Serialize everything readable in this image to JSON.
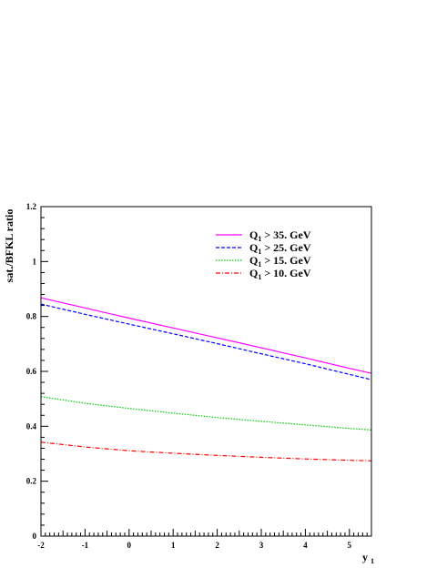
{
  "chart_data": {
    "type": "line",
    "title": "",
    "xlabel": "y",
    "xlabel_sub": "1",
    "ylabel": "sat./BFKL ratio",
    "xlim": [
      -2,
      5.5
    ],
    "ylim": [
      0,
      1.2
    ],
    "x_ticks": [
      -2,
      -1,
      0,
      1,
      2,
      3,
      4,
      5
    ],
    "x_tick_labels": [
      "-2",
      "-1",
      "0",
      "1",
      "2",
      "3",
      "4",
      "5"
    ],
    "y_ticks": [
      0,
      0.2,
      0.4,
      0.6,
      0.8,
      1,
      1.2
    ],
    "y_tick_labels": [
      "0",
      "0.2",
      "0.4",
      "0.6",
      "0.8",
      "1",
      "1.2"
    ],
    "grid": false,
    "legend_position": "top-right",
    "x": [
      -2,
      -1,
      0,
      1,
      2,
      3,
      4,
      5,
      5.5
    ],
    "series": [
      {
        "name_main": "Q",
        "name_sub": "1",
        "name_rest": " > 35. GeV",
        "color": "#ff00ff",
        "dash": "solid",
        "values": [
          0.868,
          0.831,
          0.794,
          0.758,
          0.722,
          0.686,
          0.649,
          0.611,
          0.593
        ]
      },
      {
        "name_main": "Q",
        "name_sub": "1",
        "name_rest": " > 25. GeV",
        "color": "#0000ff",
        "dash": "dashed",
        "values": [
          0.845,
          0.808,
          0.772,
          0.737,
          0.701,
          0.664,
          0.628,
          0.589,
          0.57
        ]
      },
      {
        "name_main": "Q",
        "name_sub": "1",
        "name_rest": " > 15. GeV",
        "color": "#00cc00",
        "dash": "dotted",
        "values": [
          0.508,
          0.484,
          0.465,
          0.448,
          0.432,
          0.418,
          0.405,
          0.392,
          0.387
        ]
      },
      {
        "name_main": "Q",
        "name_sub": "1",
        "name_rest": " > 10. GeV",
        "color": "#ff0000",
        "dash": "dashdot",
        "values": [
          0.342,
          0.325,
          0.311,
          0.302,
          0.294,
          0.287,
          0.281,
          0.276,
          0.274
        ]
      }
    ]
  }
}
